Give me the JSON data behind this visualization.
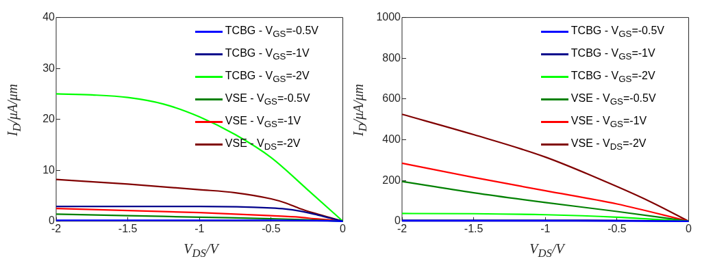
{
  "chart_data": [
    {
      "type": "line",
      "xlabel": "V$_{DS}$/V",
      "ylabel": "I$_{D}$/μA/μm",
      "xlim": [
        -2,
        0
      ],
      "xticks": [
        -2,
        -1.5,
        -1,
        -0.5,
        0
      ],
      "ylim": [
        0,
        40
      ],
      "yticks": [
        0,
        10,
        20,
        30,
        40
      ],
      "grid": false,
      "legend": "top right",
      "series": [
        {
          "name": "TCBG - V$_{GS}$=-0.5V",
          "color": "#0000ff",
          "x": [
            -2,
            -1,
            -0.5,
            -0.1,
            0
          ],
          "values": [
            0.2,
            0.2,
            0.2,
            0.1,
            0
          ]
        },
        {
          "name": "TCBG - V$_{GS}$=-1V",
          "color": "#00008b",
          "x": [
            -2,
            -1,
            -0.5,
            -0.4,
            -0.3,
            -0.2,
            -0.1,
            0
          ],
          "values": [
            2.9,
            2.9,
            2.6,
            2.4,
            2.0,
            1.4,
            0.7,
            0
          ]
        },
        {
          "name": "TCBG - V$_{GS}$=-2V",
          "color": "#00ff00",
          "x": [
            -2,
            -1.75,
            -1.5,
            -1.25,
            -1,
            -0.75,
            -0.5,
            -0.25,
            0
          ],
          "values": [
            25,
            24.8,
            24.3,
            23,
            20.5,
            17,
            12.5,
            6.3,
            0
          ]
        },
        {
          "name": "VSE - V$_{GS}$=-0.5V",
          "color": "#008000",
          "x": [
            -2,
            -1.5,
            -1,
            -0.5,
            -0.25,
            0
          ],
          "values": [
            1.4,
            1.1,
            0.8,
            0.5,
            0.3,
            0
          ]
        },
        {
          "name": "VSE - V$_{GS}$=-1V",
          "color": "#ff0000",
          "x": [
            -2,
            -1.5,
            -1,
            -0.5,
            -0.3,
            -0.2,
            -0.1,
            0
          ],
          "values": [
            2.5,
            2.1,
            1.7,
            1.1,
            0.8,
            0.5,
            0.3,
            0
          ]
        },
        {
          "name": "VSE - V$_{DS}$=-2V",
          "color": "#800000",
          "x": [
            -2,
            -1.5,
            -1,
            -0.75,
            -0.5,
            -0.4,
            -0.3,
            -0.2,
            -0.1,
            0
          ],
          "values": [
            8.2,
            7.3,
            6.2,
            5.6,
            4.4,
            3.6,
            2.5,
            1.6,
            0.8,
            0
          ]
        }
      ]
    },
    {
      "type": "line",
      "xlabel": "V$_{DS}$/V",
      "ylabel": "I$_{D}$/μA/μm",
      "xlim": [
        -2,
        0
      ],
      "xticks": [
        -2,
        -1.5,
        -1,
        -0.5,
        0
      ],
      "ylim": [
        0,
        1000
      ],
      "yticks": [
        0,
        200,
        400,
        600,
        800,
        1000
      ],
      "grid": false,
      "legend": "top right",
      "series": [
        {
          "name": "TCBG - V$_{GS}$=-0.5V",
          "color": "#0000ff",
          "x": [
            -2,
            -1,
            0
          ],
          "values": [
            2,
            2,
            0
          ]
        },
        {
          "name": "TCBG - V$_{GS}$=-1V",
          "color": "#00008b",
          "x": [
            -2,
            -1,
            -0.5,
            0
          ],
          "values": [
            5,
            5,
            4,
            0
          ]
        },
        {
          "name": "TCBG - V$_{GS}$=-2V",
          "color": "#00ff00",
          "x": [
            -2,
            -1.5,
            -1,
            -0.5,
            -0.25,
            0
          ],
          "values": [
            38,
            37,
            32,
            20,
            10,
            0
          ]
        },
        {
          "name": "VSE - V$_{GS}$=-0.5V",
          "color": "#008000",
          "x": [
            -2,
            -1.5,
            -1,
            -0.5,
            0
          ],
          "values": [
            195,
            140,
            92,
            48,
            0
          ]
        },
        {
          "name": "VSE - V$_{GS}$=-1V",
          "color": "#ff0000",
          "x": [
            -2,
            -1.5,
            -1,
            -0.5,
            0
          ],
          "values": [
            285,
            215,
            150,
            85,
            0
          ]
        },
        {
          "name": "VSE - V$_{DS}$=-2V",
          "color": "#800000",
          "x": [
            -2,
            -1.5,
            -1,
            -0.5,
            -0.25,
            0
          ],
          "values": [
            525,
            425,
            315,
            170,
            90,
            0
          ]
        }
      ]
    }
  ]
}
